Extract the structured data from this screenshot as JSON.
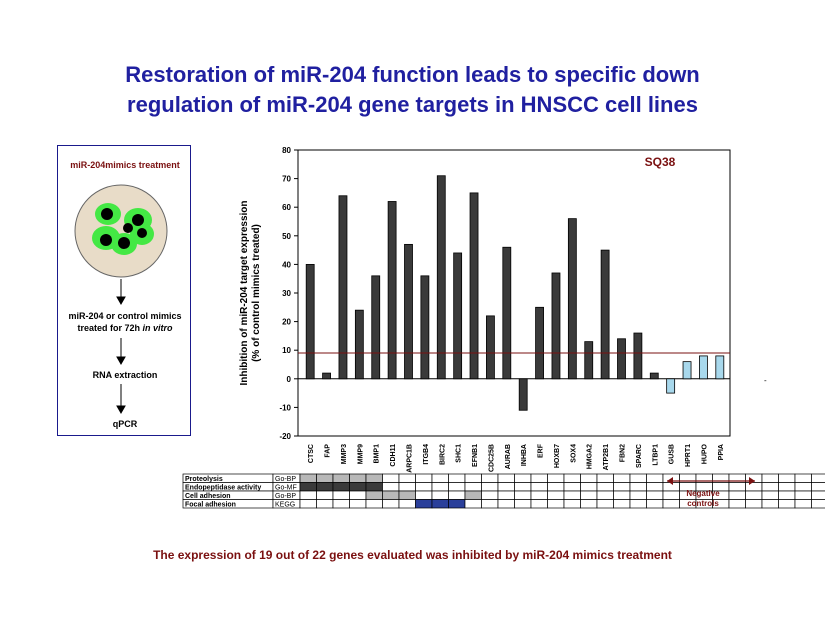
{
  "title_lines": [
    "Restoration of miR-204 function leads to specific down",
    "regulation of miR-204 gene targets in HNSCC cell lines"
  ],
  "protocol": {
    "header": "miR-204mimics treatment",
    "step1_line1": "miR-204  or control mimics",
    "step1_line2_prefix": "treated for 72h ",
    "step1_line2_italic": "in vitro",
    "step2": "RNA extraction",
    "step3": "qPCR"
  },
  "chart_data": {
    "type": "bar",
    "title": "SQ38",
    "ylabel_lines": [
      "Inhibition of miR-204 target expression",
      "(% of control mimics treated)"
    ],
    "ylim": [
      -20,
      80
    ],
    "yticks": [
      -20,
      -10,
      0,
      10,
      20,
      30,
      40,
      50,
      60,
      70,
      80
    ],
    "threshold": 9,
    "categories": [
      "CTSC",
      "FAP",
      "MMP3",
      "MMP9",
      "BMP1",
      "CDH11",
      "ARPC1B",
      "ITGB4",
      "BIRC2",
      "SHC1",
      "EFNB1",
      "CDC25B",
      "AURAB",
      "INHBA",
      "ERF",
      "HOXB7",
      "SOX4",
      "HMGA2",
      "ATP2B1",
      "FBN2",
      "SPARC",
      "LTBP1",
      "GUSB",
      "HPRT1",
      "HUPO",
      "PPIA"
    ],
    "values": [
      40,
      2,
      64,
      24,
      36,
      62,
      47,
      36,
      71,
      44,
      65,
      22,
      46,
      -11,
      25,
      37,
      56,
      13,
      45,
      14,
      16,
      2,
      -5,
      6,
      8,
      8
    ],
    "negative_controls": [
      "GUSB",
      "HPRT1",
      "HUPO",
      "PPIA"
    ],
    "colors": {
      "target": "#3a3a3a",
      "control": "#a8d8ec",
      "threshold": "#7a1010"
    }
  },
  "annotation_table": {
    "rows": [
      {
        "name": "Proteolysis",
        "db": "Go-BP",
        "fill": [
          1,
          1,
          1,
          1,
          1,
          0,
          0,
          0,
          0,
          0,
          0,
          0,
          0,
          0,
          0,
          0,
          0,
          0,
          0,
          0,
          0,
          0,
          0,
          0,
          0,
          0,
          0,
          0,
          0,
          0,
          0,
          0
        ]
      },
      {
        "name": "Endopeptidase activity",
        "db": "Go-MF",
        "fill": [
          2,
          2,
          2,
          2,
          2,
          0,
          0,
          0,
          0,
          0,
          0,
          0,
          0,
          0,
          0,
          0,
          0,
          0,
          0,
          0,
          0,
          0,
          0,
          0,
          0,
          0,
          0,
          0,
          0,
          0,
          0,
          0
        ]
      },
      {
        "name": "Cell adhesion",
        "db": "Go-BP",
        "fill": [
          0,
          0,
          0,
          0,
          1,
          1,
          1,
          0,
          0,
          0,
          1,
          0,
          0,
          0,
          0,
          0,
          0,
          0,
          0,
          0,
          0,
          0,
          0,
          0,
          0,
          0,
          0,
          0,
          0,
          0,
          0,
          0
        ]
      },
      {
        "name": "Focal adhesion",
        "db": "KEGG",
        "fill": [
          0,
          0,
          0,
          0,
          0,
          0,
          0,
          3,
          3,
          3,
          0,
          0,
          0,
          0,
          0,
          0,
          0,
          0,
          0,
          0,
          0,
          0,
          0,
          0,
          0,
          0,
          0,
          0,
          0,
          0,
          0,
          0
        ]
      }
    ],
    "colors": [
      "#ffffff",
      "#b8b8b8",
      "#3a3a3a",
      "#2a3f9a"
    ],
    "negative_controls_label": [
      "Negative",
      "controls"
    ]
  },
  "footer": "The expression of 19 out of 22 genes evaluated was inhibited by miR-204 mimics treatment"
}
